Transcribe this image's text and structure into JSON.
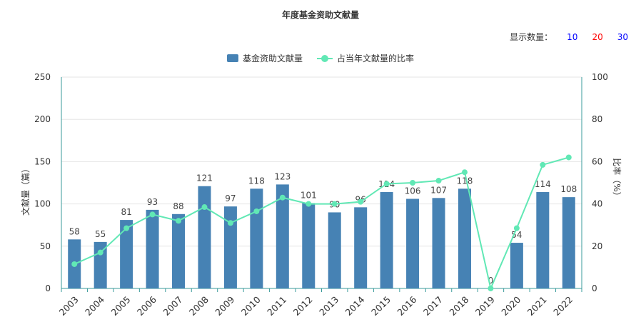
{
  "title": "年度基金资助文献量",
  "count_selector": {
    "label": "显示数量：",
    "options": [
      {
        "label": "10",
        "color": "#0000ff"
      },
      {
        "label": "20",
        "color": "#ff0000"
      },
      {
        "label": "30",
        "color": "#0000ff"
      }
    ]
  },
  "legend": {
    "bar_label": "基金资助文献量",
    "line_label": "占当年文献量的比率"
  },
  "colors": {
    "bar": "#4682b4",
    "line": "#61e8b5",
    "axis": "#3a9b9b",
    "grid": "#e6e6e6"
  },
  "chart_data": {
    "type": "bar",
    "categories": [
      "2003",
      "2004",
      "2005",
      "2006",
      "2007",
      "2008",
      "2009",
      "2010",
      "2011",
      "2012",
      "2013",
      "2014",
      "2015",
      "2016",
      "2017",
      "2018",
      "2019",
      "2020",
      "2021",
      "2022"
    ],
    "series": [
      {
        "name": "基金资助文献量",
        "type": "bar",
        "axis": "left",
        "values": [
          58,
          55,
          81,
          93,
          88,
          121,
          97,
          118,
          123,
          101,
          90,
          96,
          114,
          106,
          107,
          118,
          0,
          54,
          114,
          108
        ],
        "labels": [
          "58",
          "55",
          "81",
          "93",
          "88",
          "121",
          "97",
          "118",
          "123",
          "101",
          "90",
          "96",
          "114",
          "106",
          "107",
          "118",
          "0",
          "54",
          "114",
          "108"
        ]
      },
      {
        "name": "占当年文献量的比率",
        "type": "line",
        "axis": "right",
        "values": [
          11.5,
          17,
          28.5,
          35,
          32,
          38.5,
          31,
          36.5,
          43,
          40,
          40,
          41,
          49.5,
          50,
          51,
          55,
          0,
          28.5,
          58.5,
          62
        ]
      }
    ],
    "ylabel": "文献量（篇）",
    "ylabel_right": "比率（%）",
    "ylim": [
      0,
      250
    ],
    "yticks": [
      "0",
      "50",
      "100",
      "150",
      "200",
      "250"
    ],
    "ylim_right": [
      0,
      100
    ],
    "yticks_right": [
      "0",
      "20",
      "40",
      "60",
      "80",
      "100"
    ],
    "grid": true,
    "legend_position": "top-center"
  }
}
